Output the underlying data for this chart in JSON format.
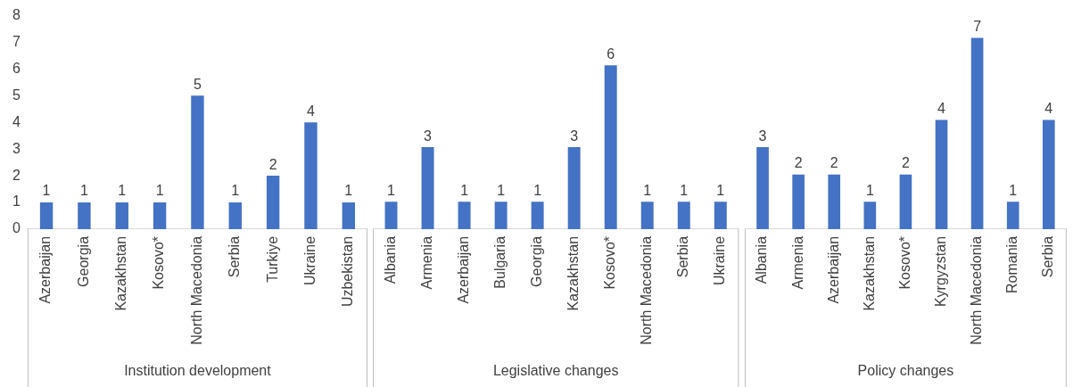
{
  "chart_data": [
    {
      "type": "bar",
      "xlabel": "Institution development",
      "categories": [
        "Azerbaijan",
        "Georgia",
        "Kazakhstan",
        "Kosovo*",
        "North Macedonia",
        "Serbia",
        "Turkiye",
        "Ukraine",
        "Uzbekistan"
      ],
      "values": [
        1,
        1,
        1,
        1,
        5,
        1,
        2,
        4,
        1
      ],
      "color": "#4472c4",
      "ylim": [
        0,
        8
      ],
      "yticks": [
        0,
        1,
        2,
        3,
        4,
        5,
        6,
        7,
        8
      ],
      "grid": false,
      "legend": false,
      "data_labels": true
    },
    {
      "type": "bar",
      "xlabel": "Legislative changes",
      "categories": [
        "Albania",
        "Armenia",
        "Azerbaijan",
        "Bulgaria",
        "Georgia",
        "Kazakhstan",
        "Kosovo*",
        "North Macedonia",
        "Serbia",
        "Ukraine"
      ],
      "values": [
        1,
        3,
        1,
        1,
        1,
        3,
        6,
        1,
        1,
        1
      ],
      "color": "#4472c4",
      "ylim": [
        0,
        8
      ],
      "yticks": [
        0,
        1,
        2,
        3,
        4,
        5,
        6,
        7,
        8
      ],
      "grid": false,
      "legend": false,
      "data_labels": true,
      "tick_labels": "x"
    },
    {
      "type": "bar",
      "xlabel": "Policy changes",
      "categories": [
        "Albania",
        "Armenia",
        "Azerbaijan",
        "Kazakhstan",
        "Kosovo*",
        "Kyrgyzstan",
        "North Macedonia",
        "Romania",
        "Serbia"
      ],
      "values": [
        3,
        2,
        2,
        1,
        2,
        4,
        7,
        1,
        4
      ],
      "color": "#4472c4",
      "ylim": [
        0,
        8
      ],
      "yticks": [
        0,
        1,
        2,
        3,
        4,
        5,
        6,
        7,
        8
      ],
      "grid": false,
      "legend": false,
      "data_labels": true,
      "tick_labels": "x"
    }
  ]
}
